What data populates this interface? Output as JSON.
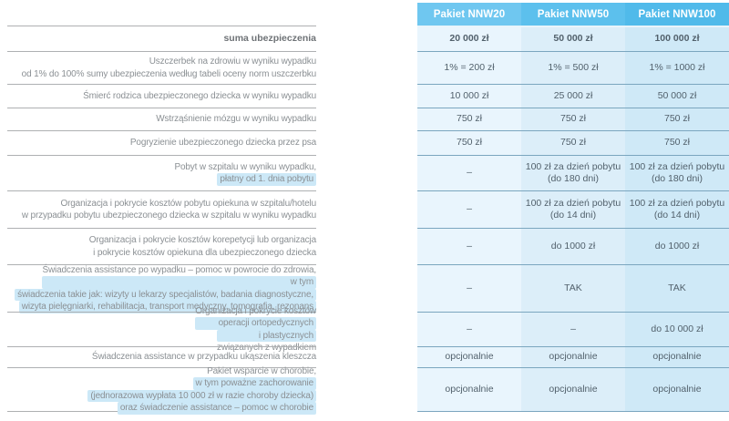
{
  "colors": {
    "header_col1": "#6fc7f0",
    "header_col2": "#5cc0ed",
    "header_col3": "#50baea",
    "cell_col1": "#e9f5fd",
    "cell_col2": "#dceef9",
    "cell_col3": "#cfe9f7",
    "highlight": "#cce8f7",
    "table_separator": "#7ba6bf",
    "label_separator": "#aeb0b2",
    "header_text": "#ffffff",
    "value_text": "#52616c",
    "label_text": "#8b9094"
  },
  "table": {
    "columns": [
      "Pakiet NNW20",
      "Pakiet NNW50",
      "Pakiet NNW100"
    ],
    "rows": [
      {
        "bold": true,
        "label_lines": [
          [
            {
              "t": "suma ubezpieczenia",
              "h": false
            }
          ]
        ],
        "values": [
          [
            "20 000 zł"
          ],
          [
            "50 000 zł"
          ],
          [
            "100 000 zł"
          ]
        ]
      },
      {
        "bold": false,
        "label_lines": [
          [
            {
              "t": "Uszczerbek na zdrowiu w wyniku wypadku",
              "h": false
            }
          ],
          [
            {
              "t": "od 1% do 100% sumy ubezpieczenia według tabeli oceny norm uszczerbku",
              "h": false
            }
          ]
        ],
        "values": [
          [
            "1% = 200 zł"
          ],
          [
            "1% = 500 zł"
          ],
          [
            "1% = 1000 zł"
          ]
        ]
      },
      {
        "bold": false,
        "label_lines": [
          [
            {
              "t": "Śmierć rodzica ubezpieczonego dziecka w wyniku wypadku",
              "h": false
            }
          ]
        ],
        "values": [
          [
            "10 000 zł"
          ],
          [
            "25 000 zł"
          ],
          [
            "50 000 zł"
          ]
        ]
      },
      {
        "bold": false,
        "label_lines": [
          [
            {
              "t": "Wstrząśnienie mózgu w wyniku wypadku",
              "h": false
            }
          ]
        ],
        "values": [
          [
            "750 zł"
          ],
          [
            "750 zł"
          ],
          [
            "750 zł"
          ]
        ]
      },
      {
        "bold": false,
        "label_lines": [
          [
            {
              "t": "Pogryzienie ubezpieczonego dziecka przez psa",
              "h": false
            }
          ]
        ],
        "values": [
          [
            "750 zł"
          ],
          [
            "750 zł"
          ],
          [
            "750 zł"
          ]
        ]
      },
      {
        "bold": false,
        "label_lines": [
          [
            {
              "t": "Pobyt w szpitalu w wyniku wypadku,",
              "h": false
            }
          ],
          [
            {
              "t": "płatny od 1. dnia pobytu",
              "h": true
            }
          ]
        ],
        "values": [
          [
            "–"
          ],
          [
            "100 zł za dzień pobytu",
            "(do 180 dni)"
          ],
          [
            "100 zł za dzień pobytu",
            "(do 180 dni)"
          ]
        ]
      },
      {
        "bold": false,
        "label_lines": [
          [
            {
              "t": "Organizacja i pokrycie kosztów pobytu opiekuna w szpitalu/hotelu",
              "h": false
            }
          ],
          [
            {
              "t": "w przypadku pobytu ubezpieczonego dziecka w szpitalu w wyniku wypadku",
              "h": false
            }
          ]
        ],
        "values": [
          [
            "–"
          ],
          [
            "100 zł za dzień pobytu",
            "(do 14 dni)"
          ],
          [
            "100 zł za dzień pobytu",
            "(do 14 dni)"
          ]
        ]
      },
      {
        "bold": false,
        "label_lines": [
          [
            {
              "t": "Organizacja i pokrycie kosztów korepetycji lub organizacja",
              "h": false
            }
          ],
          [
            {
              "t": "i pokrycie kosztów opiekuna dla ubezpieczonego dziecka",
              "h": false
            }
          ]
        ],
        "values": [
          [
            "–"
          ],
          [
            "do 1000 zł"
          ],
          [
            "do 1000 zł"
          ]
        ]
      },
      {
        "bold": false,
        "label_lines": [
          [
            {
              "t": "Świadczenia assistance po wypadku – pomoc w powrocie do zdrowia, ",
              "h": false
            },
            {
              "t": "w tym",
              "h": true
            }
          ],
          [
            {
              "t": "świadczenia takie jak: wizyty u lekarzy specjalistów, badania diagnostyczne,",
              "h": true
            }
          ],
          [
            {
              "t": "wizyta pielęgniarki, rehabilitacja, transport medyczny, tomografia, rezonans",
              "h": true
            }
          ]
        ],
        "values": [
          [
            "–"
          ],
          [
            "TAK"
          ],
          [
            "TAK"
          ]
        ]
      },
      {
        "bold": false,
        "label_lines": [
          [
            {
              "t": "Organizacja i pokrycie kosztów ",
              "h": false
            },
            {
              "t": "operacji ortopedycznych",
              "h": true
            }
          ],
          [
            {
              "t": "i plastycznych",
              "h": true
            },
            {
              "t": " związanych z wypadkiem",
              "h": false
            }
          ]
        ],
        "values": [
          [
            "–"
          ],
          [
            "–"
          ],
          [
            "do 10 000 zł"
          ]
        ]
      },
      {
        "bold": false,
        "label_lines": [
          [
            {
              "t": "Świadczenia assistance w przypadku ukąszenia kleszcza",
              "h": false
            }
          ]
        ],
        "values": [
          [
            "opcjonalnie"
          ],
          [
            "opcjonalnie"
          ],
          [
            "opcjonalnie"
          ]
        ]
      },
      {
        "bold": false,
        "label_lines": [
          [
            {
              "t": "Pakiet wsparcie w chorobie, ",
              "h": false
            },
            {
              "t": "w tym poważne zachorowanie",
              "h": true
            }
          ],
          [
            {
              "t": "(jednorazowa wypłata 10 000 zł w razie choroby dziecka)",
              "h": true
            }
          ],
          [
            {
              "t": "oraz świadczenie assistance – pomoc w chorobie",
              "h": true
            }
          ]
        ],
        "values": [
          [
            "opcjonalnie"
          ],
          [
            "opcjonalnie"
          ],
          [
            "opcjonalnie"
          ]
        ]
      }
    ]
  }
}
